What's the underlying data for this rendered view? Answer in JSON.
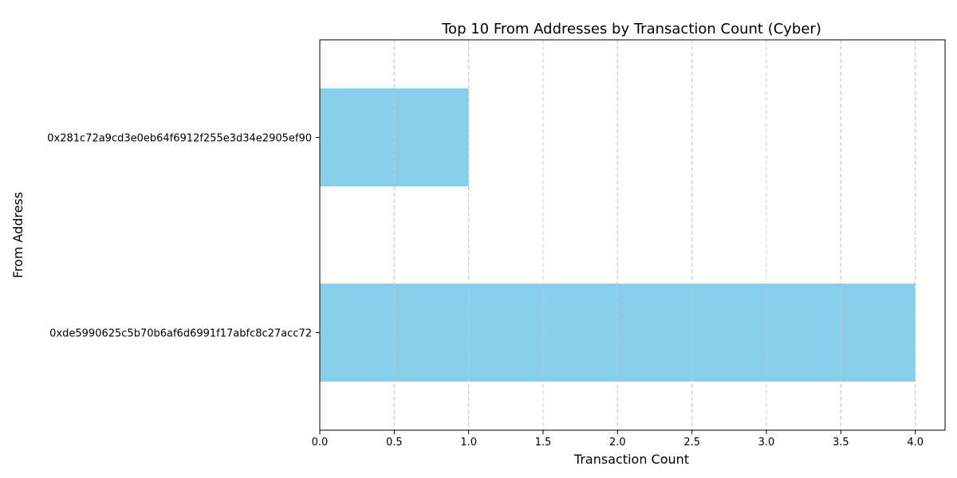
{
  "chart_data": {
    "type": "bar",
    "orientation": "horizontal",
    "title": "Top 10 From Addresses by Transaction Count (Cyber)",
    "xlabel": "Transaction Count",
    "ylabel": "From Address",
    "categories": [
      "0xde5990625c5b70b6af6d6991f17abfc8c27acc72",
      "0x281c72a9cd3e0eb64f6912f255e3d34e2905ef90"
    ],
    "values": [
      4,
      1
    ],
    "xlim": [
      0,
      4.2
    ],
    "xticks": [
      "0.0",
      "0.5",
      "1.0",
      "1.5",
      "2.0",
      "2.5",
      "3.0",
      "3.5",
      "4.0"
    ],
    "grid": "x-dashed",
    "bar_color": "#87CEEB",
    "grid_color": "#c8c8c8"
  }
}
